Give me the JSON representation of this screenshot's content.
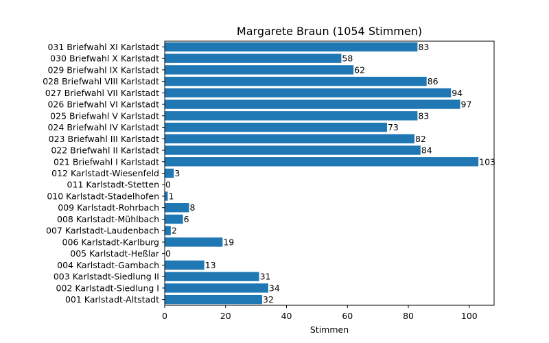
{
  "chart_data": {
    "type": "bar",
    "orientation": "horizontal",
    "title": "Margarete Braun (1054 Stimmen)",
    "xlabel": "Stimmen",
    "ylabel": "",
    "xlim": [
      0,
      108.15
    ],
    "xticks": [
      0,
      20,
      40,
      60,
      80,
      100
    ],
    "grid": false,
    "bar_color": "#1f77b4",
    "categories": [
      "001 Karlstadt-Altstadt",
      "002 Karlstadt-Siedlung I",
      "003 Karlstadt-Siedlung II",
      "004 Karlstadt-Gambach",
      "005 Karlstadt-Heßlar",
      "006 Karlstadt-Karlburg",
      "007 Karlstadt-Laudenbach",
      "008 Karlstadt-Mühlbach",
      "009 Karlstadt-Rohrbach",
      "010 Karlstadt-Stadelhofen",
      "011 Karlstadt-Stetten",
      "012 Karlstadt-Wiesenfeld",
      "021 Briefwahl I Karlstadt",
      "022 Briefwahl II Karlstadt",
      "023 Briefwahl III Karlstadt",
      "024 Briefwahl IV Karlstadt",
      "025 Briefwahl V Karlstadt",
      "026 Briefwahl VI Karlstadt",
      "027 Briefwahl VII Karlstadt",
      "028 Briefwahl VIII Karlstadt",
      "029 Briefwahl IX Karlstadt",
      "030 Briefwahl X Karlstadt",
      "031 Briefwahl XI Karlstadt"
    ],
    "values": [
      32,
      34,
      31,
      13,
      0,
      19,
      2,
      6,
      8,
      1,
      0,
      3,
      103,
      84,
      82,
      73,
      83,
      97,
      94,
      86,
      62,
      58,
      83
    ]
  }
}
